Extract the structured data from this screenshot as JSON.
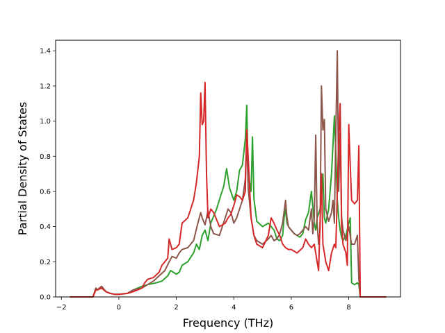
{
  "chart_data": {
    "type": "line",
    "title": "",
    "xlabel": "Frequency (THz)",
    "ylabel": "Partial Density of States",
    "xlim": [
      -2.2,
      9.8
    ],
    "ylim": [
      0.0,
      1.46
    ],
    "xticks": [
      -2,
      0,
      2,
      4,
      6,
      8
    ],
    "xtick_labels": [
      "−2",
      "0",
      "2",
      "4",
      "6",
      "8"
    ],
    "yticks": [
      0.0,
      0.2,
      0.4,
      0.6,
      0.8,
      1.0,
      1.2,
      1.4
    ],
    "ytick_labels": [
      "0.0",
      "0.2",
      "0.4",
      "0.6",
      "0.8",
      "1.0",
      "1.2",
      "1.4"
    ],
    "grid": false,
    "series": [
      {
        "color": "#2ca02c",
        "x": [
          -1.7,
          -0.9,
          -0.8,
          -0.75,
          -0.6,
          -0.45,
          -0.3,
          -0.15,
          0.0,
          0.3,
          0.5,
          0.8,
          1.0,
          1.3,
          1.5,
          1.7,
          1.8,
          2.0,
          2.1,
          2.2,
          2.4,
          2.6,
          2.7,
          2.8,
          2.9,
          3.0,
          3.1,
          3.2,
          3.4,
          3.55,
          3.65,
          3.75,
          3.85,
          4.0,
          4.1,
          4.2,
          4.3,
          4.4,
          4.45,
          4.5,
          4.6,
          4.65,
          4.7,
          4.8,
          5.0,
          5.2,
          5.3,
          5.4,
          5.5,
          5.6,
          5.7,
          5.75,
          5.8,
          5.85,
          5.9,
          6.0,
          6.1,
          6.2,
          6.3,
          6.4,
          6.5,
          6.6,
          6.7,
          6.8,
          6.85,
          6.9,
          7.0,
          7.05,
          7.1,
          7.15,
          7.2,
          7.3,
          7.4,
          7.5,
          7.55,
          7.6,
          7.65,
          7.7,
          7.75,
          7.8,
          7.9,
          8.0,
          8.05,
          8.1,
          8.2,
          8.3,
          8.35,
          8.4,
          8.45,
          8.5,
          9.3
        ],
        "y": [
          0.0,
          0.0,
          0.05,
          0.04,
          0.06,
          0.03,
          0.02,
          0.015,
          0.015,
          0.02,
          0.04,
          0.06,
          0.07,
          0.08,
          0.09,
          0.12,
          0.15,
          0.13,
          0.14,
          0.18,
          0.2,
          0.25,
          0.3,
          0.27,
          0.35,
          0.38,
          0.32,
          0.42,
          0.5,
          0.58,
          0.63,
          0.73,
          0.62,
          0.55,
          0.6,
          0.72,
          0.75,
          0.9,
          1.09,
          0.7,
          0.6,
          0.91,
          0.56,
          0.43,
          0.4,
          0.42,
          0.4,
          0.38,
          0.33,
          0.32,
          0.35,
          0.45,
          0.5,
          0.42,
          0.4,
          0.38,
          0.36,
          0.35,
          0.34,
          0.36,
          0.44,
          0.48,
          0.6,
          0.42,
          0.38,
          0.45,
          0.5,
          0.55,
          0.7,
          0.45,
          0.42,
          0.5,
          0.7,
          1.03,
          0.82,
          0.55,
          0.45,
          0.38,
          0.34,
          0.32,
          0.35,
          0.42,
          0.45,
          0.08,
          0.07,
          0.08,
          0.07,
          0.0,
          0.0,
          0.0,
          0.0
        ]
      },
      {
        "color": "#8c564b",
        "x": [
          -1.7,
          -0.9,
          -0.8,
          -0.75,
          -0.6,
          -0.45,
          -0.3,
          -0.15,
          0.0,
          0.3,
          0.5,
          0.8,
          1.0,
          1.2,
          1.4,
          1.6,
          1.75,
          1.85,
          2.0,
          2.1,
          2.2,
          2.4,
          2.6,
          2.75,
          2.85,
          2.9,
          3.0,
          3.1,
          3.2,
          3.3,
          3.5,
          3.7,
          3.8,
          3.9,
          4.0,
          4.1,
          4.3,
          4.4,
          4.45,
          4.5,
          4.6,
          4.7,
          4.8,
          5.0,
          5.2,
          5.3,
          5.4,
          5.5,
          5.6,
          5.7,
          5.8,
          5.85,
          5.9,
          6.0,
          6.1,
          6.2,
          6.3,
          6.4,
          6.5,
          6.6,
          6.7,
          6.75,
          6.8,
          6.85,
          6.9,
          6.95,
          7.0,
          7.05,
          7.1,
          7.15,
          7.2,
          7.3,
          7.4,
          7.45,
          7.5,
          7.55,
          7.6,
          7.65,
          7.7,
          7.75,
          7.8,
          7.9,
          8.0,
          8.1,
          8.2,
          8.3,
          8.35,
          8.4,
          8.45,
          9.3
        ],
        "y": [
          0.0,
          0.0,
          0.05,
          0.04,
          0.06,
          0.03,
          0.02,
          0.015,
          0.015,
          0.02,
          0.04,
          0.05,
          0.07,
          0.09,
          0.12,
          0.15,
          0.2,
          0.23,
          0.22,
          0.25,
          0.27,
          0.28,
          0.32,
          0.42,
          0.48,
          0.45,
          0.41,
          0.49,
          0.4,
          0.36,
          0.35,
          0.45,
          0.5,
          0.48,
          0.42,
          0.45,
          0.55,
          0.67,
          0.92,
          0.62,
          0.45,
          0.35,
          0.32,
          0.3,
          0.33,
          0.35,
          0.32,
          0.33,
          0.36,
          0.42,
          0.55,
          0.45,
          0.4,
          0.38,
          0.36,
          0.35,
          0.36,
          0.38,
          0.4,
          0.38,
          0.5,
          0.36,
          0.45,
          0.92,
          0.42,
          0.3,
          0.38,
          1.2,
          0.95,
          1.01,
          0.5,
          0.43,
          0.48,
          0.55,
          0.42,
          0.94,
          1.4,
          0.6,
          0.93,
          0.45,
          0.38,
          0.32,
          0.4,
          0.3,
          0.3,
          0.35,
          0.1,
          0.0,
          0.0,
          0.0
        ]
      },
      {
        "color": "#d62728",
        "x": [
          -1.7,
          -0.9,
          -0.8,
          -0.75,
          -0.6,
          -0.45,
          -0.3,
          -0.15,
          0.0,
          0.3,
          0.5,
          0.8,
          0.9,
          1.0,
          1.2,
          1.4,
          1.5,
          1.6,
          1.7,
          1.75,
          1.85,
          2.0,
          2.1,
          2.2,
          2.4,
          2.6,
          2.7,
          2.8,
          2.85,
          2.9,
          2.95,
          3.0,
          3.05,
          3.1,
          3.2,
          3.3,
          3.5,
          3.7,
          3.8,
          3.9,
          4.0,
          4.1,
          4.2,
          4.3,
          4.4,
          4.45,
          4.5,
          4.6,
          4.7,
          4.8,
          5.0,
          5.2,
          5.3,
          5.4,
          5.5,
          5.6,
          5.7,
          5.8,
          5.9,
          6.0,
          6.2,
          6.4,
          6.5,
          6.6,
          6.7,
          6.8,
          6.9,
          6.95,
          7.0,
          7.05,
          7.1,
          7.15,
          7.2,
          7.3,
          7.35,
          7.4,
          7.5,
          7.55,
          7.6,
          7.65,
          7.7,
          7.75,
          7.8,
          7.9,
          7.95,
          8.0,
          8.05,
          8.1,
          8.2,
          8.3,
          8.35,
          8.4,
          8.45,
          9.3
        ],
        "y": [
          0.0,
          0.0,
          0.04,
          0.04,
          0.05,
          0.03,
          0.02,
          0.015,
          0.015,
          0.02,
          0.03,
          0.05,
          0.08,
          0.1,
          0.11,
          0.14,
          0.18,
          0.2,
          0.22,
          0.33,
          0.27,
          0.28,
          0.3,
          0.42,
          0.45,
          0.55,
          0.65,
          0.8,
          1.16,
          0.98,
          1.0,
          1.22,
          0.7,
          0.45,
          0.5,
          0.48,
          0.4,
          0.42,
          0.45,
          0.47,
          0.52,
          0.58,
          0.57,
          0.55,
          0.6,
          0.95,
          0.8,
          0.45,
          0.35,
          0.3,
          0.28,
          0.35,
          0.45,
          0.42,
          0.38,
          0.35,
          0.3,
          0.28,
          0.27,
          0.27,
          0.25,
          0.28,
          0.33,
          0.3,
          0.28,
          0.3,
          0.2,
          0.15,
          0.42,
          0.7,
          0.3,
          0.25,
          0.2,
          0.15,
          0.2,
          0.25,
          0.3,
          0.28,
          0.6,
          0.9,
          1.1,
          0.4,
          0.3,
          0.25,
          0.18,
          0.98,
          0.75,
          0.55,
          0.53,
          0.55,
          0.86,
          0.0,
          0.0,
          0.0
        ]
      }
    ]
  }
}
